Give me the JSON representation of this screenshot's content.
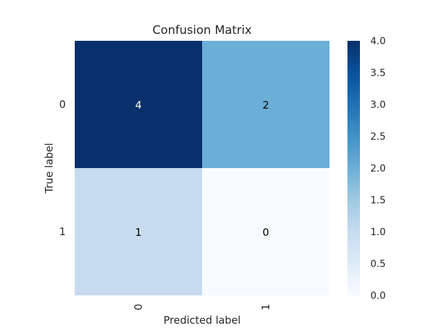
{
  "chart_data": {
    "type": "heatmap",
    "title": "Confusion Matrix",
    "xlabel": "Predicted label",
    "ylabel": "True label",
    "x_categories": [
      "0",
      "1"
    ],
    "y_categories": [
      "0",
      "1"
    ],
    "values": [
      [
        4,
        2
      ],
      [
        1,
        0
      ]
    ],
    "colorbar": {
      "min": 0.0,
      "max": 4.0,
      "ticks": [
        "0.0",
        "0.5",
        "1.0",
        "1.5",
        "2.0",
        "2.5",
        "3.0",
        "3.5",
        "4.0"
      ],
      "colormap": "Blues",
      "colors": [
        "#f7fbff",
        "#deebf7",
        "#c6dbef",
        "#9ecae1",
        "#6baed6",
        "#4292c6",
        "#2171b5",
        "#08519c",
        "#08306b"
      ]
    },
    "grid": false
  }
}
